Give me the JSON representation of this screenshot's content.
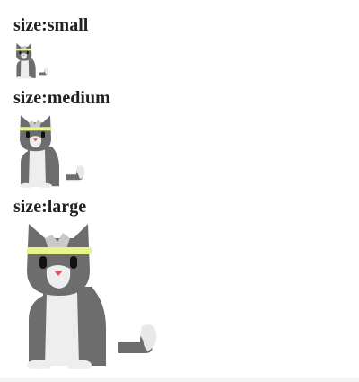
{
  "sections": [
    {
      "label": "size:small"
    },
    {
      "label": "size:medium"
    },
    {
      "label": "size:large"
    }
  ],
  "colors": {
    "fur": "#6d6d6d",
    "chest": "#eeeeee",
    "tail_tip": "#e8e8e8",
    "headband": "#e8f58a",
    "eyes": "#111111",
    "nose": "#e0505a"
  },
  "icons": [
    "cat-icon"
  ]
}
